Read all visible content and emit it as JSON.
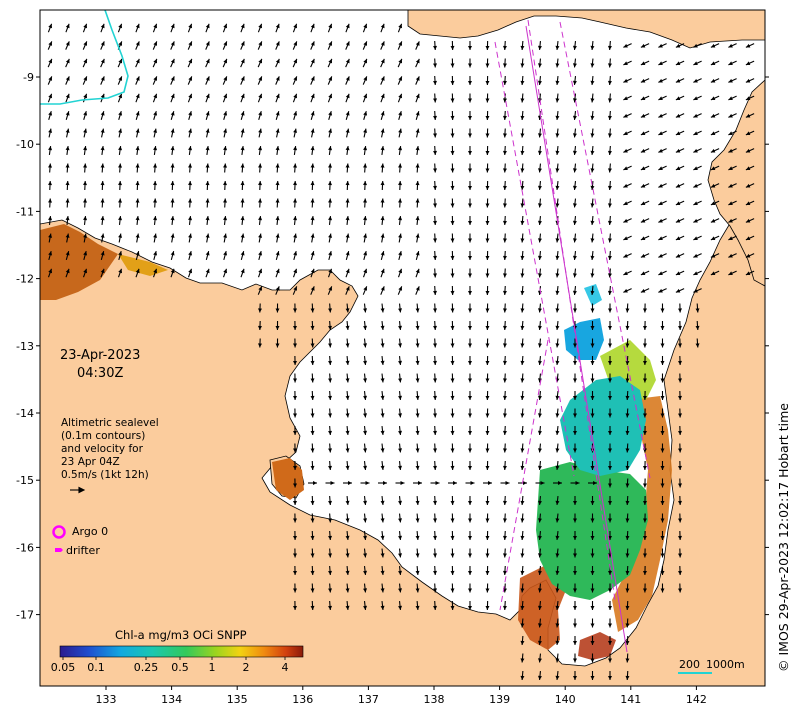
{
  "map": {
    "date": "23-Apr-2023",
    "time": "04:30Z",
    "description_lines": [
      "Altimetric sealevel",
      "(0.1m contours)",
      "and velocity for",
      "23 Apr 04Z",
      "0.5m/s (1kt 12h)"
    ],
    "legend": {
      "argo_label": "Argo 0",
      "drifter_label": "drifter"
    },
    "colorbar": {
      "title": "Chl-a mg/m3 OCi SNPP",
      "tick_labels": [
        "0.05",
        "0.1",
        "0.25",
        "0.5",
        "1",
        "2",
        "4"
      ]
    },
    "scale_bar": {
      "label_a": "200",
      "label_b": "1000m"
    },
    "credit": "© IMOS 29-Apr-2023 12:02:17 Hobart time",
    "lon_ticks": [
      "133",
      "134",
      "135",
      "136",
      "137",
      "138",
      "139",
      "140",
      "141",
      "142"
    ],
    "lat_ticks": [
      "-9",
      "-10",
      "-11",
      "-12",
      "-13",
      "-14",
      "-15",
      "-16",
      "-17"
    ],
    "colors": {
      "land": "#fbcc9d",
      "ocean": "#ffffff",
      "argo": "#ff00ff",
      "drifter": "#ff00ff",
      "track": "#cc33cc",
      "contour_cyan": "#22d3d3"
    }
  }
}
